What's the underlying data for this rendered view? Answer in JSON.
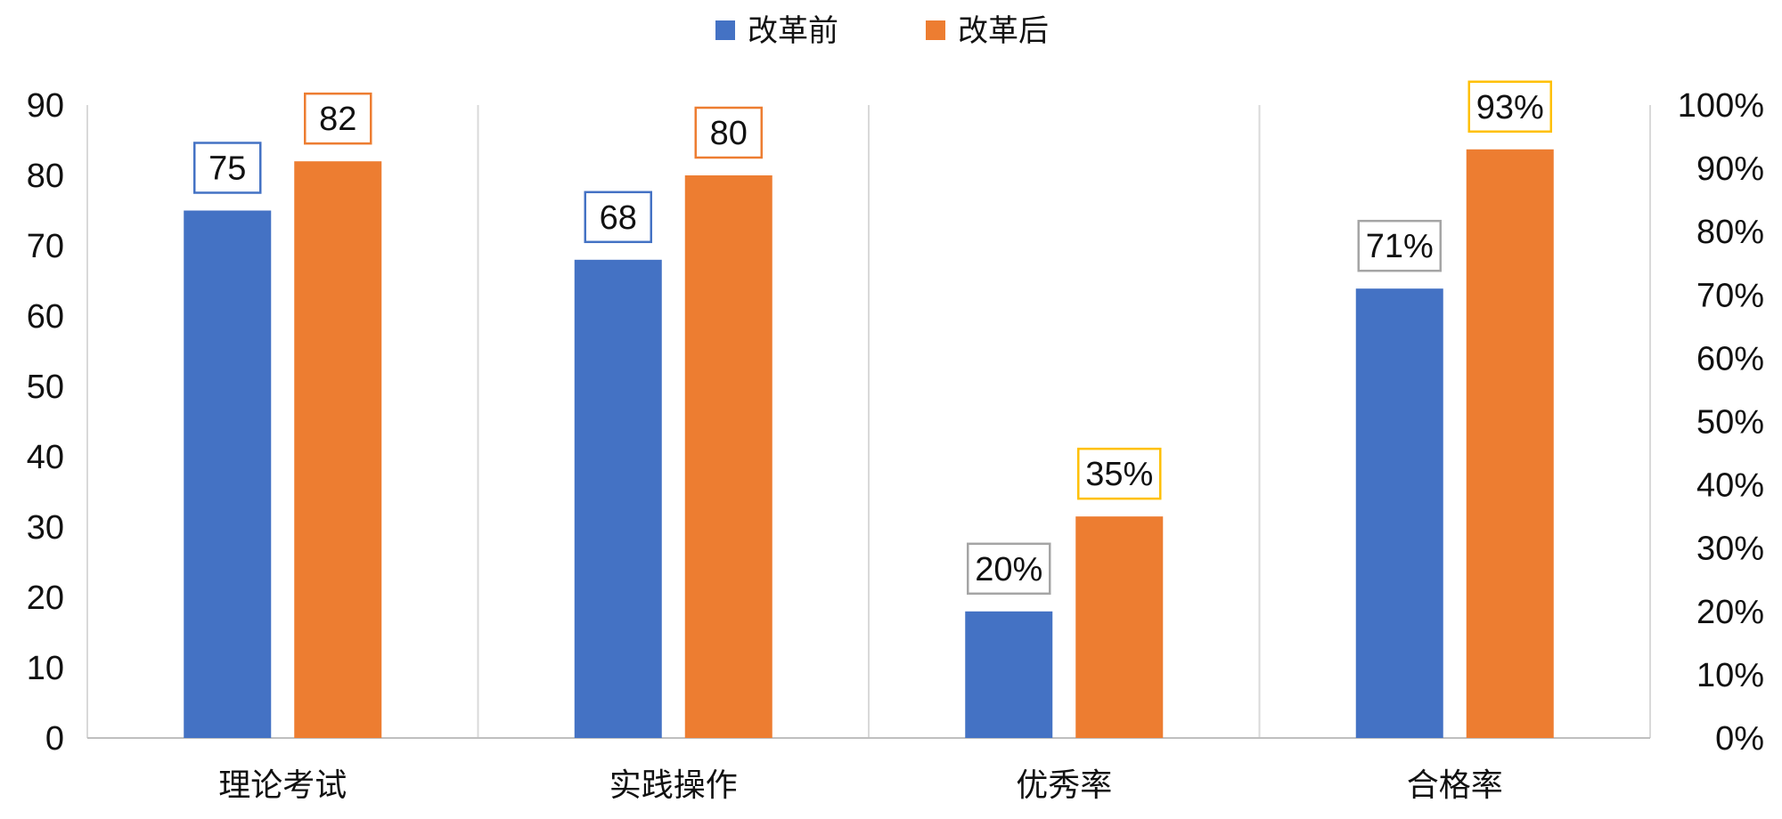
{
  "chart_data": {
    "type": "bar",
    "title": "",
    "categories": [
      "理论考试",
      "实践操作",
      "优秀率",
      "合格率"
    ],
    "series": [
      {
        "name": "改革前",
        "color": "#4472C4",
        "values": [
          75,
          68,
          20,
          71
        ],
        "labels": [
          "75",
          "68",
          "20%",
          "71%"
        ],
        "label_border_colors": [
          "#4472C4",
          "#4472C4",
          "#A5A5A5",
          "#A5A5A5"
        ]
      },
      {
        "name": "改革后",
        "color": "#ED7D31",
        "values": [
          82,
          80,
          35,
          93
        ],
        "labels": [
          "82",
          "80",
          "35%",
          "93%"
        ],
        "label_border_colors": [
          "#ED7D31",
          "#ED7D31",
          "#FFC000",
          "#FFC000"
        ]
      }
    ],
    "axis_assignment": [
      "left",
      "left",
      "right",
      "right"
    ],
    "y_left": {
      "min": 0,
      "max": 90,
      "step": 10,
      "ticks": [
        "0",
        "10",
        "20",
        "30",
        "40",
        "50",
        "60",
        "70",
        "80",
        "90"
      ]
    },
    "y_right": {
      "min": 0,
      "max": 1.0,
      "step": 0.1,
      "ticks": [
        "0%",
        "10%",
        "20%",
        "30%",
        "40%",
        "50%",
        "60%",
        "70%",
        "80%",
        "90%",
        "100%"
      ]
    },
    "legend_position": "top-center",
    "vertical_category_separators": true,
    "xlabel": "",
    "ylabel": ""
  }
}
